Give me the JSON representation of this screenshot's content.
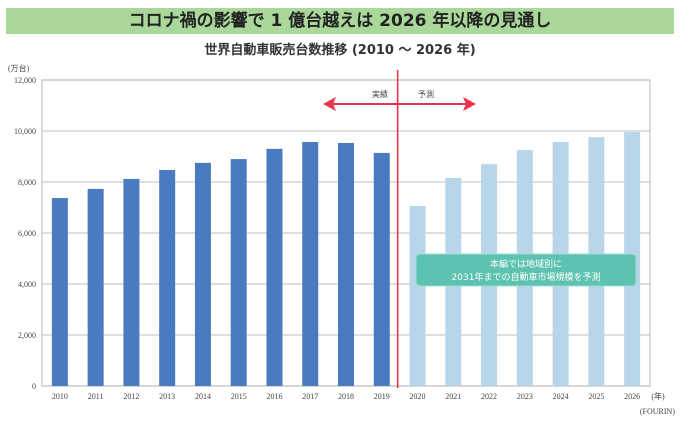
{
  "header": {
    "banner": "コロナ禍の影響で 1 億台越えは 2026 年以降の見通し"
  },
  "chart_data": {
    "type": "bar",
    "title": "世界自動車販売台数推移 (2010 ～ 2026 年)",
    "ylabel": "(万台)",
    "xlabel": "(年)",
    "source": "(FOURIN)",
    "ylim": [
      0,
      12000
    ],
    "yticks": [
      "0",
      "2,000",
      "4,000",
      "6,000",
      "8,000",
      "10,000",
      "12,000"
    ],
    "categories": [
      "2010",
      "2011",
      "2012",
      "2013",
      "2014",
      "2015",
      "2016",
      "2017",
      "2018",
      "2019",
      "2020",
      "2021",
      "2022",
      "2023",
      "2024",
      "2025",
      "2026"
    ],
    "series": [
      {
        "name": "実績",
        "color": "#4a7abf",
        "values": [
          7370,
          7730,
          8120,
          8470,
          8750,
          8900,
          9300,
          9570,
          9530,
          9140,
          null,
          null,
          null,
          null,
          null,
          null,
          null
        ]
      },
      {
        "name": "予測",
        "color": "#b9d5ea",
        "values": [
          null,
          null,
          null,
          null,
          null,
          null,
          null,
          null,
          null,
          null,
          7060,
          8160,
          8700,
          9250,
          9570,
          9760,
          9960
        ]
      }
    ],
    "annotations": {
      "actual": "実績",
      "forecast": "予測",
      "note_line1": "本編では地域別に",
      "note_line2": "2031年までの自動車市場規模を予測"
    },
    "grid": true
  }
}
